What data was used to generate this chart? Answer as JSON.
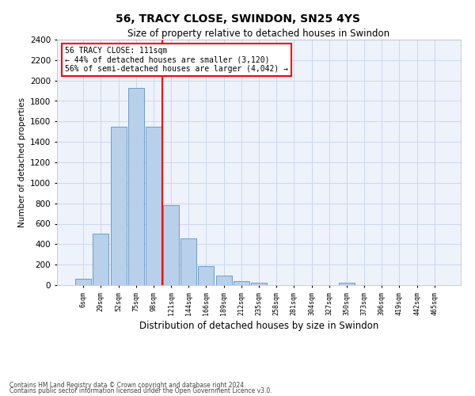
{
  "title1": "56, TRACY CLOSE, SWINDON, SN25 4YS",
  "title2": "Size of property relative to detached houses in Swindon",
  "xlabel": "Distribution of detached houses by size in Swindon",
  "ylabel": "Number of detached properties",
  "footer1": "Contains HM Land Registry data © Crown copyright and database right 2024.",
  "footer2": "Contains public sector information licensed under the Open Government Licence v3.0.",
  "annotation_line1": "56 TRACY CLOSE: 111sqm",
  "annotation_line2": "← 44% of detached houses are smaller (3,120)",
  "annotation_line3": "56% of semi-detached houses are larger (4,042) →",
  "bar_categories": [
    "6sqm",
    "29sqm",
    "52sqm",
    "75sqm",
    "98sqm",
    "121sqm",
    "144sqm",
    "166sqm",
    "189sqm",
    "212sqm",
    "235sqm",
    "258sqm",
    "281sqm",
    "304sqm",
    "327sqm",
    "350sqm",
    "373sqm",
    "396sqm",
    "419sqm",
    "442sqm",
    "465sqm"
  ],
  "bar_values": [
    60,
    500,
    1550,
    1930,
    1550,
    780,
    460,
    185,
    90,
    35,
    25,
    0,
    0,
    0,
    0,
    20,
    0,
    0,
    0,
    0,
    0
  ],
  "bar_color": "#b8d0ea",
  "bar_edge_color": "#6090c0",
  "vline_color": "red",
  "grid_color": "#ccd8ec",
  "background_color": "#eef2fa",
  "ylim": [
    0,
    2400
  ],
  "yticks": [
    0,
    200,
    400,
    600,
    800,
    1000,
    1200,
    1400,
    1600,
    1800,
    2000,
    2200,
    2400
  ],
  "vline_x": 4.5
}
